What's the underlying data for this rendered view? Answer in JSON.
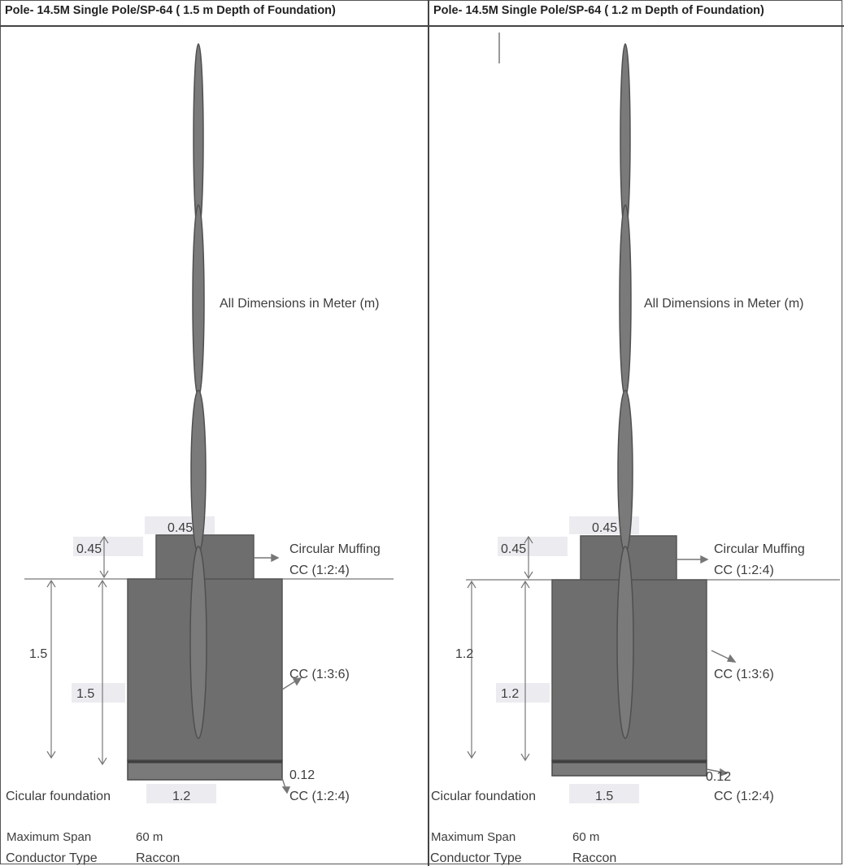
{
  "panels": [
    {
      "title": "Pole- 14.5M Single Pole/SP-64  ( 1.5 m Depth of Foundation)",
      "dimensions_note": "All Dimensions in Meter (m)",
      "muffing_height": "0.45",
      "muffing_width": "0.45",
      "muffing_label_1": "Circular Muffing",
      "muffing_label_2": "CC (1:2:4)",
      "depth_outer": "1.5",
      "depth_inner": "1.5",
      "body_label": "CC (1:3:6)",
      "base_thickness": "0.12",
      "base_label": "CC (1:2:4)",
      "foundation_label": "Cicular foundation",
      "foundation_width": "1.2",
      "span_label": "Maximum Span",
      "span_value": "60 m",
      "conductor_label": "Conductor Type",
      "conductor_value": "Raccon"
    },
    {
      "title": "Pole- 14.5M Single Pole/SP-64  ( 1.2 m Depth of Foundation)",
      "dimensions_note": "All Dimensions in Meter (m)",
      "muffing_height": "0.45",
      "muffing_width": "0.45",
      "muffing_label_1": "Circular Muffing",
      "muffing_label_2": "CC (1:2:4)",
      "depth_outer": "1.2",
      "depth_inner": "1.2",
      "body_label": "CC (1:3:6)",
      "base_thickness": "0.12",
      "base_label": "CC (1:2:4)",
      "foundation_label": "Cicular foundation",
      "foundation_width": "1.5",
      "span_label": "Maximum Span",
      "span_value": "60 m",
      "conductor_label": "Conductor Type",
      "conductor_value": "Raccon"
    }
  ],
  "colors": {
    "concrete": "#6e6e6e",
    "pole": "#7a7a7a",
    "label_bg": "#e9e9ee",
    "ink": "#3d3d3d"
  }
}
